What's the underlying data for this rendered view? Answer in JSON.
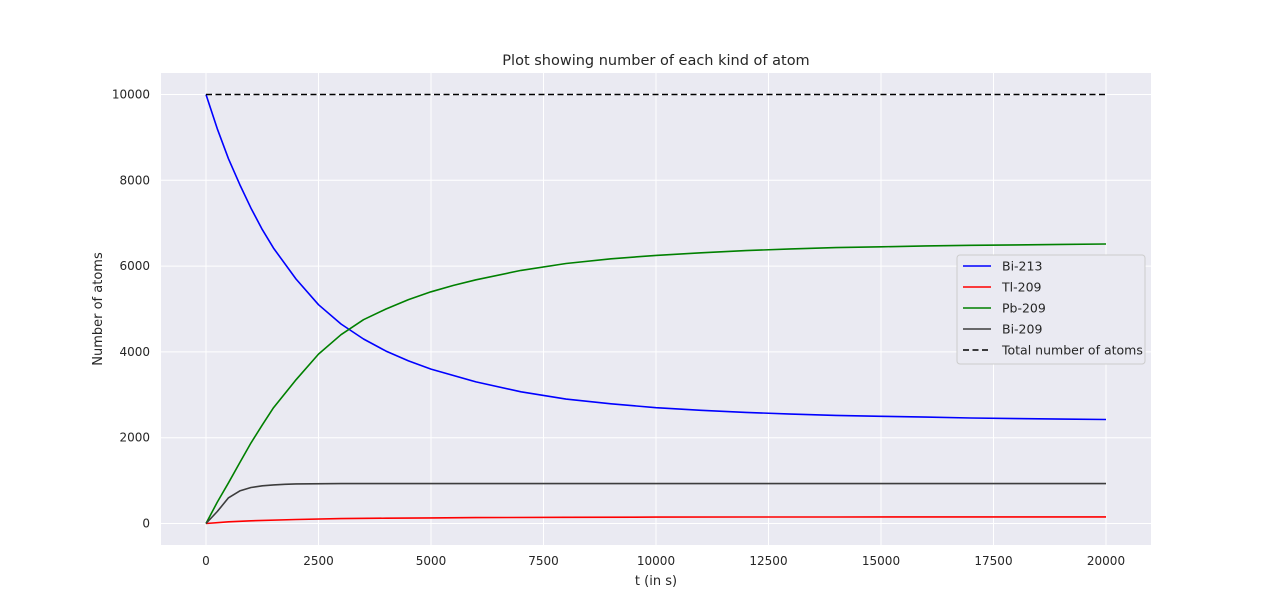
{
  "chart_data": {
    "type": "line",
    "title": "Plot showing number of each kind of atom",
    "xlabel": "t (in s)",
    "ylabel": "Number of atoms",
    "xlim": [
      -1000,
      21000
    ],
    "ylim": [
      -500,
      10500
    ],
    "xticks": [
      0,
      2500,
      5000,
      7500,
      10000,
      12500,
      15000,
      17500,
      20000
    ],
    "yticks": [
      0,
      2000,
      4000,
      6000,
      8000,
      10000
    ],
    "grid": true,
    "legend_position": "center-right",
    "background_color": "#eaeaf2",
    "series": [
      {
        "name": "Bi-213",
        "color": "#0000ff",
        "dash": "solid",
        "x": [
          0,
          250,
          500,
          750,
          1000,
          1250,
          1500,
          2000,
          2500,
          3000,
          3500,
          4000,
          4500,
          5000,
          6000,
          7000,
          8000,
          9000,
          10000,
          11000,
          12000,
          13000,
          14000,
          15000,
          16000,
          17000,
          18000,
          19000,
          20000
        ],
        "y": [
          10000,
          9200,
          8500,
          7900,
          7350,
          6850,
          6420,
          5700,
          5100,
          4650,
          4300,
          4020,
          3790,
          3600,
          3300,
          3070,
          2900,
          2790,
          2700,
          2640,
          2590,
          2550,
          2520,
          2500,
          2480,
          2460,
          2445,
          2435,
          2425
        ]
      },
      {
        "name": "Tl-209",
        "color": "#ff0000",
        "dash": "solid",
        "x": [
          0,
          500,
          1000,
          2000,
          3000,
          4000,
          5000,
          6000,
          8000,
          10000,
          12000,
          14000,
          16000,
          18000,
          20000
        ],
        "y": [
          0,
          40,
          65,
          95,
          115,
          125,
          132,
          138,
          145,
          150,
          152,
          153,
          154,
          155,
          155
        ]
      },
      {
        "name": "Pb-209",
        "color": "#008000",
        "dash": "solid",
        "x": [
          0,
          250,
          500,
          750,
          1000,
          1250,
          1500,
          2000,
          2500,
          3000,
          3500,
          4000,
          4500,
          5000,
          5500,
          6000,
          7000,
          8000,
          9000,
          10000,
          11000,
          12000,
          13000,
          14000,
          15000,
          16000,
          17000,
          18000,
          19000,
          20000
        ],
        "y": [
          0,
          500,
          950,
          1420,
          1880,
          2300,
          2700,
          3350,
          3950,
          4400,
          4750,
          5000,
          5220,
          5400,
          5550,
          5680,
          5900,
          6060,
          6170,
          6250,
          6310,
          6360,
          6400,
          6430,
          6450,
          6470,
          6485,
          6495,
          6505,
          6515
        ]
      },
      {
        "name": "Bi-209",
        "color": "#3d3d3d",
        "dash": "solid",
        "x": [
          0,
          250,
          500,
          750,
          1000,
          1250,
          1500,
          1750,
          2000,
          3000,
          5000,
          10000,
          15000,
          20000
        ],
        "y": [
          0,
          280,
          600,
          760,
          840,
          880,
          900,
          915,
          925,
          930,
          930,
          930,
          930,
          930
        ]
      },
      {
        "name": "Total number of atoms",
        "color": "#000000",
        "dash": "dashed",
        "x": [
          0,
          20000
        ],
        "y": [
          10000,
          10000
        ]
      }
    ]
  }
}
